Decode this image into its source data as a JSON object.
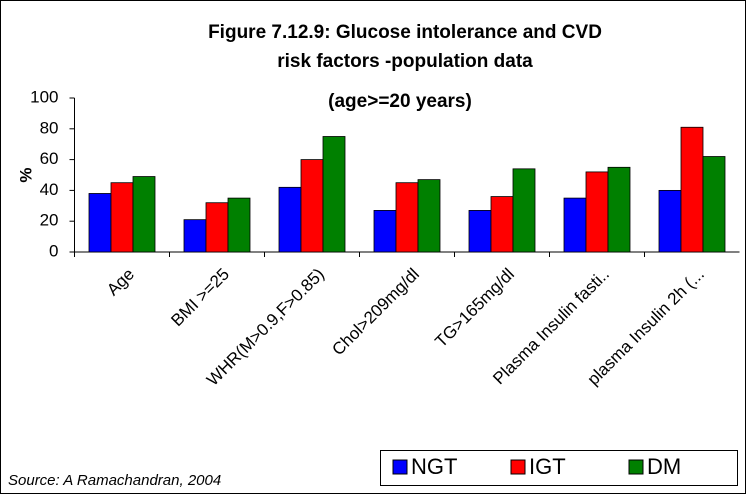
{
  "chart_data": {
    "type": "bar",
    "title": "Figure 7.12.9: Glucose intolerance and CVD risk factors -population data",
    "subtitle": "(age>=20 years)",
    "y_label": "%",
    "source": "Source: A Ramachandran, 2004",
    "categories": [
      "Age",
      "BMI >=25",
      "WHR(M>0.9,F>0.85)",
      "Chol>209mg/dl",
      "TG>165mg/dl",
      "Plasma Insulin fasti..",
      "plasma Insulin 2h (..."
    ],
    "series": [
      {
        "name": "NGT",
        "color": "#0000ff",
        "values": [
          38,
          21,
          42,
          27,
          27,
          35,
          40
        ]
      },
      {
        "name": "IGT",
        "color": "#ff0000",
        "values": [
          45,
          32,
          60,
          45,
          36,
          52,
          81
        ]
      },
      {
        "name": "DM",
        "color": "#008000",
        "values": [
          49,
          35,
          75,
          47,
          54,
          55,
          62
        ]
      }
    ],
    "ylim": [
      0,
      100
    ],
    "yticks": [
      0,
      20,
      40,
      60,
      80,
      100
    ],
    "grid": false,
    "legend": "bottom-right"
  }
}
